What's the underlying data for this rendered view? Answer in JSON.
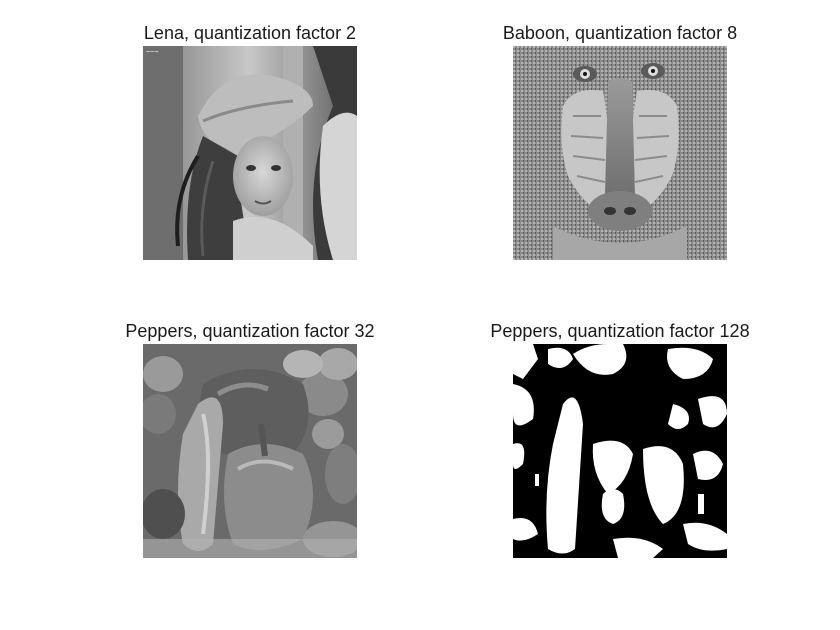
{
  "figure": {
    "subplots": [
      {
        "title": "Lena, quantization factor 2",
        "image": "lena-photo"
      },
      {
        "title": "Baboon, quantization factor 8",
        "image": "baboon-photo"
      },
      {
        "title": "Peppers, quantization factor 32",
        "image": "peppers-photo"
      },
      {
        "title": "Peppers, quantization factor 128",
        "image": "peppers-photo-binary"
      }
    ]
  }
}
